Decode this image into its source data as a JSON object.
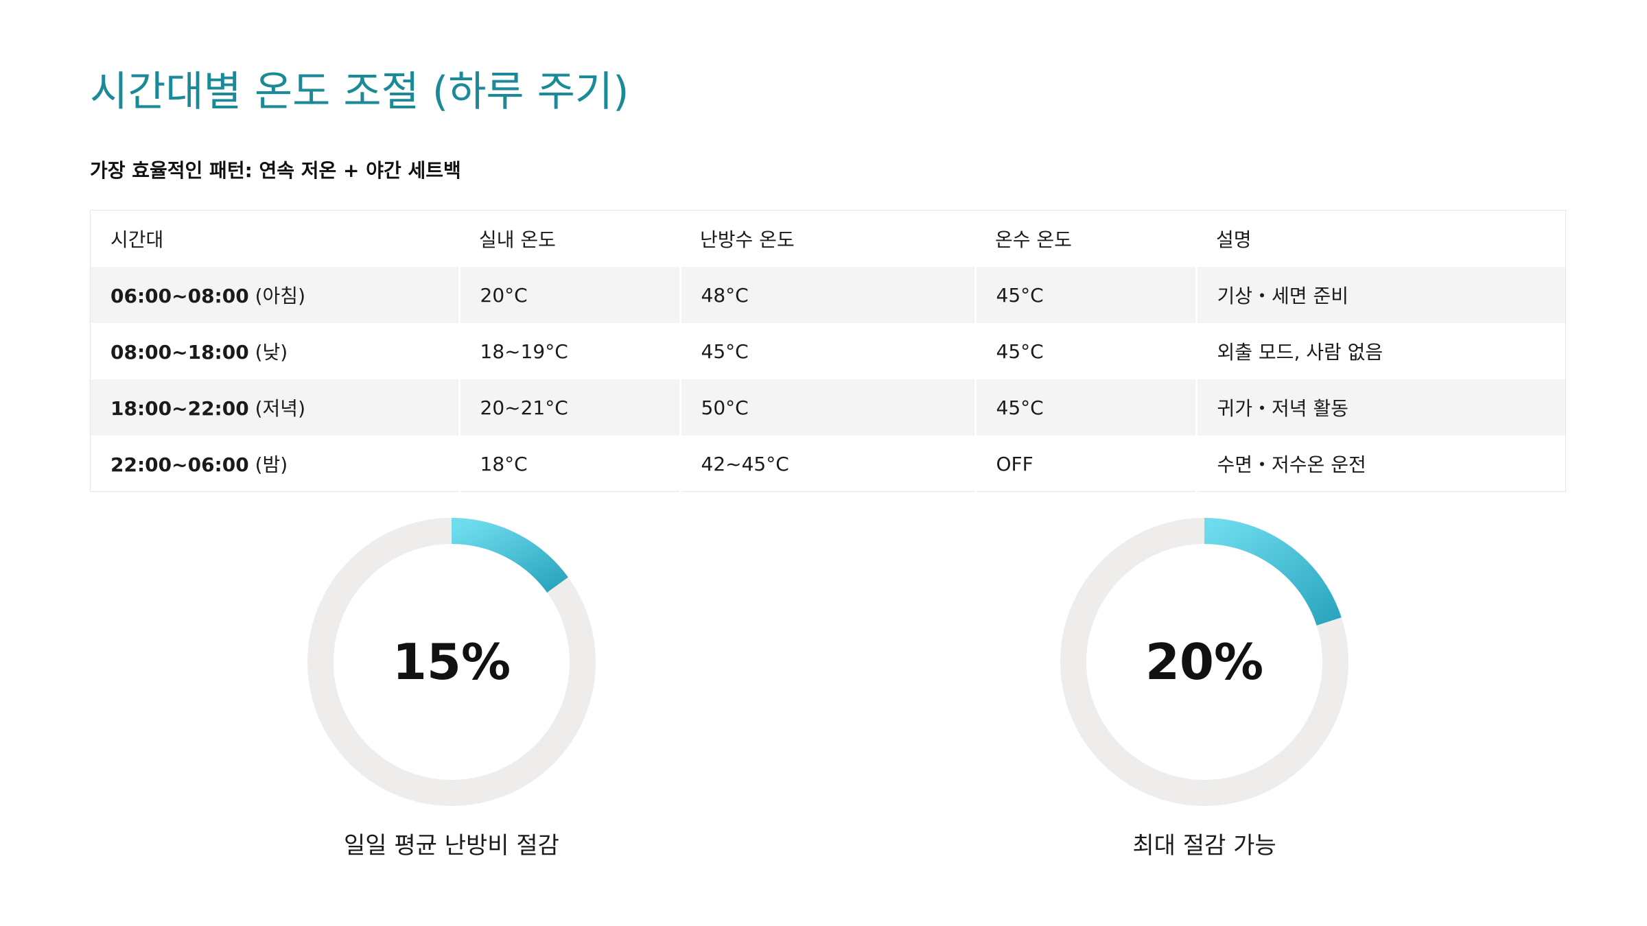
{
  "title": "시간대별 온도 조절 (하루 주기)",
  "subtitle": "가장 효율적인 패턴: 연속 저온 + 야간 세트백",
  "table": {
    "headers": [
      "시간대",
      "실내 온도",
      "난방수 온도",
      "온수 온도",
      "설명"
    ],
    "rows": [
      {
        "time": "06:00~08:00",
        "period": " (아침)",
        "indoor": "20°C",
        "heating": "48°C",
        "hotwater": "45°C",
        "desc": "기상・세면 준비"
      },
      {
        "time": "08:00~18:00",
        "period": " (낮)",
        "indoor": "18~19°C",
        "heating": "45°C",
        "hotwater": "45°C",
        "desc": "외출 모드, 사람 없음"
      },
      {
        "time": "18:00~22:00",
        "period": " (저녁)",
        "indoor": "20~21°C",
        "heating": "50°C",
        "hotwater": "45°C",
        "desc": "귀가・저녁 활동"
      },
      {
        "time": "22:00~06:00",
        "period": " (밤)",
        "indoor": "18°C",
        "heating": "42~45°C",
        "hotwater": "OFF",
        "desc": "수면・저수온 운전"
      }
    ]
  },
  "gauges": [
    {
      "value_label": "15%",
      "value": 0.15,
      "label": "일일 평균 난방비 절감"
    },
    {
      "value_label": "20%",
      "value": 0.2,
      "label": "최대 절감 가능"
    }
  ],
  "colors": {
    "title": "#1b8a98",
    "track": "#efecec",
    "arc_start": "#6fdcee",
    "arc_end": "#2ba6bf"
  }
}
